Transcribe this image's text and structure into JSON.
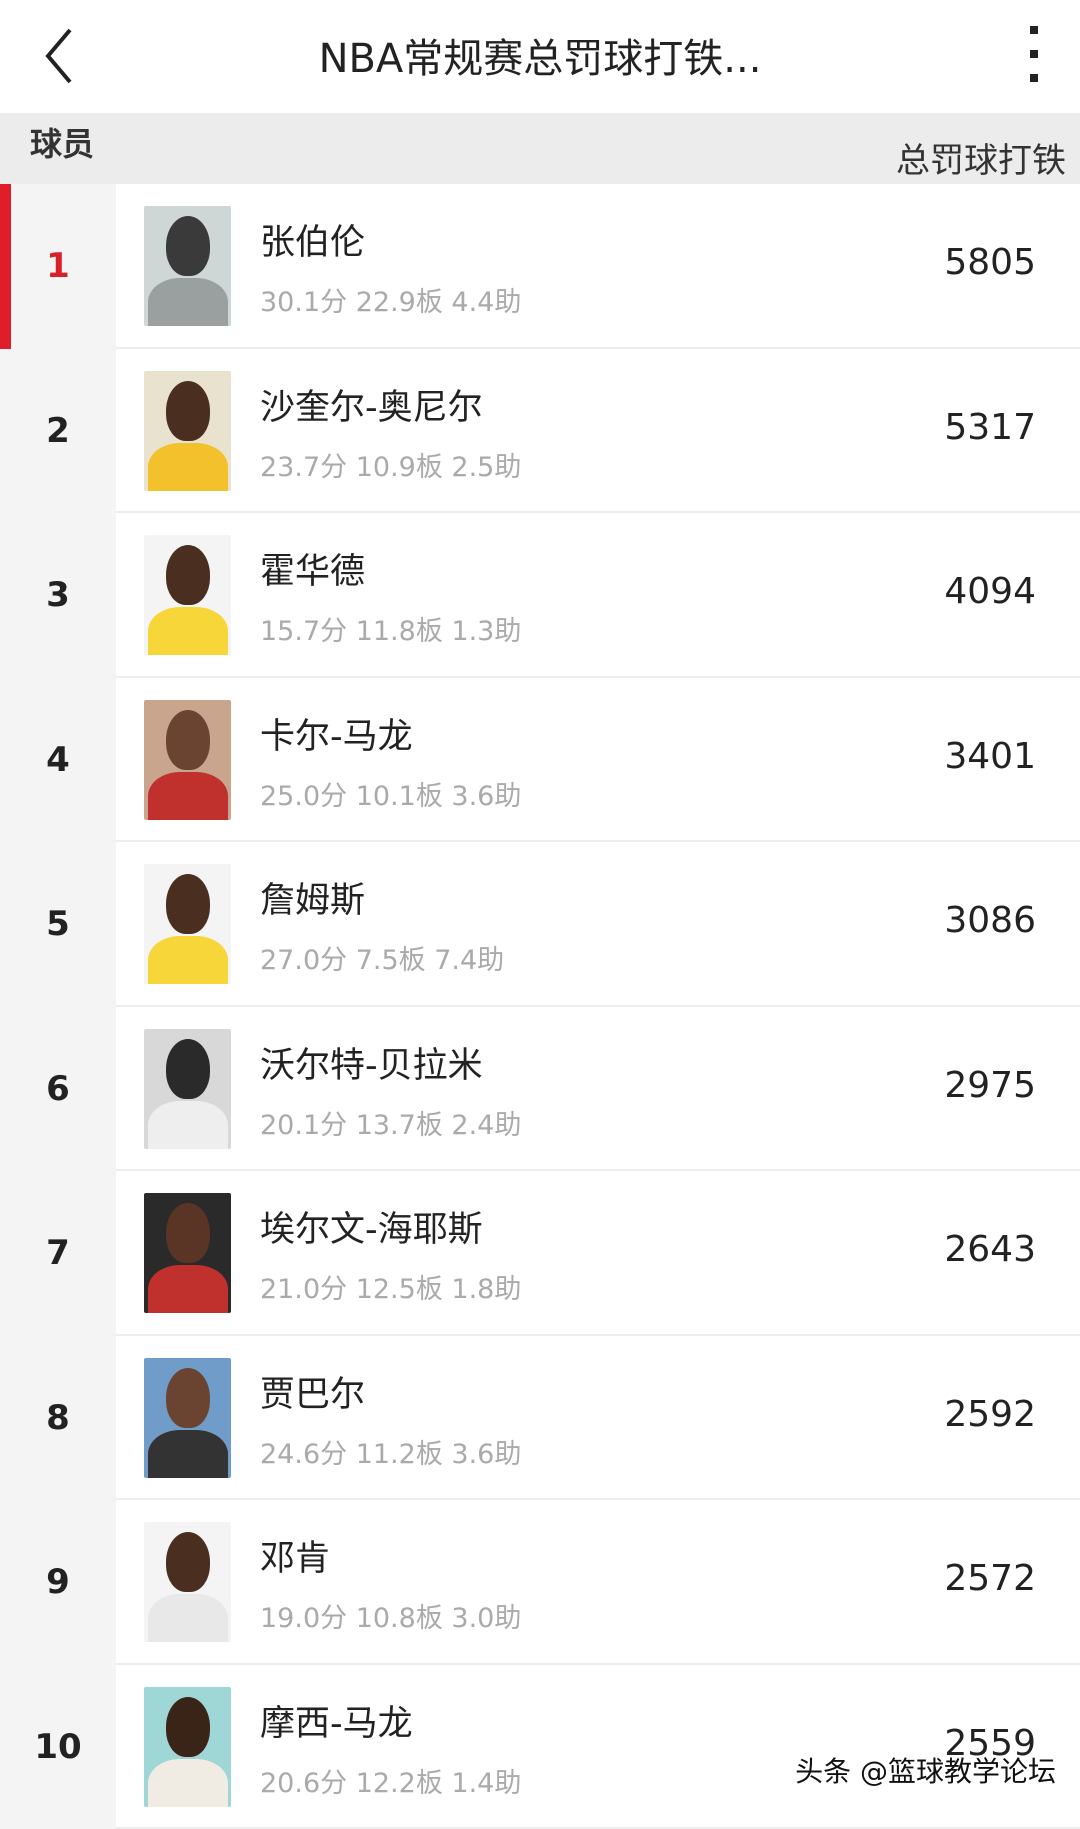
{
  "header": {
    "title": "NBA常规赛总罚球打铁...",
    "back_icon": "chevron-left-icon",
    "menu_icon": "more-vertical-icon"
  },
  "table": {
    "col_player": "球员",
    "col_value": "总罚球打铁"
  },
  "accent_color": "#e01e2a",
  "rows": [
    {
      "rank": "1",
      "name": "张伯伦",
      "stats": "30.1分  22.9板  4.4助",
      "value": "5805",
      "photo_bg": "#cfd6d6",
      "skin": "#3a3a3a",
      "jersey": "#9aa0a0"
    },
    {
      "rank": "2",
      "name": "沙奎尔-奥尼尔",
      "stats": "23.7分  10.9板  2.5助",
      "value": "5317",
      "photo_bg": "#e9e2cf",
      "skin": "#4a2e20",
      "jersey": "#f3c12b"
    },
    {
      "rank": "3",
      "name": "霍华德",
      "stats": "15.7分  11.8板  1.3助",
      "value": "4094",
      "photo_bg": "#f4f4f4",
      "skin": "#4a2e20",
      "jersey": "#f7d63a"
    },
    {
      "rank": "4",
      "name": "卡尔-马龙",
      "stats": "25.0分  10.1板  3.6助",
      "value": "3401",
      "photo_bg": "#c9a58e",
      "skin": "#6a4430",
      "jersey": "#c0302c"
    },
    {
      "rank": "5",
      "name": "詹姆斯",
      "stats": "27.0分  7.5板  7.4助",
      "value": "3086",
      "photo_bg": "#f4f4f4",
      "skin": "#4a2e20",
      "jersey": "#f7d63a"
    },
    {
      "rank": "6",
      "name": "沃尔特-贝拉米",
      "stats": "20.1分  13.7板  2.4助",
      "value": "2975",
      "photo_bg": "#d8d8d8",
      "skin": "#2a2a2a",
      "jersey": "#eeeeee"
    },
    {
      "rank": "7",
      "name": "埃尔文-海耶斯",
      "stats": "21.0分  12.5板  1.8助",
      "value": "2643",
      "photo_bg": "#2a2a2a",
      "skin": "#5a3526",
      "jersey": "#c0302c"
    },
    {
      "rank": "8",
      "name": "贾巴尔",
      "stats": "24.6分  11.2板  3.6助",
      "value": "2592",
      "photo_bg": "#6f9cc9",
      "skin": "#6a4430",
      "jersey": "#333333"
    },
    {
      "rank": "9",
      "name": "邓肯",
      "stats": "19.0分  10.8板  3.0助",
      "value": "2572",
      "photo_bg": "#f4f4f4",
      "skin": "#4a2e20",
      "jersey": "#e8e8e8"
    },
    {
      "rank": "10",
      "name": "摩西-马龙",
      "stats": "20.6分  12.2板  1.4助",
      "value": "2559",
      "photo_bg": "#9fd6d6",
      "skin": "#3a2418",
      "jersey": "#f0ece4"
    }
  ],
  "watermark": "头条 @篮球教学论坛"
}
